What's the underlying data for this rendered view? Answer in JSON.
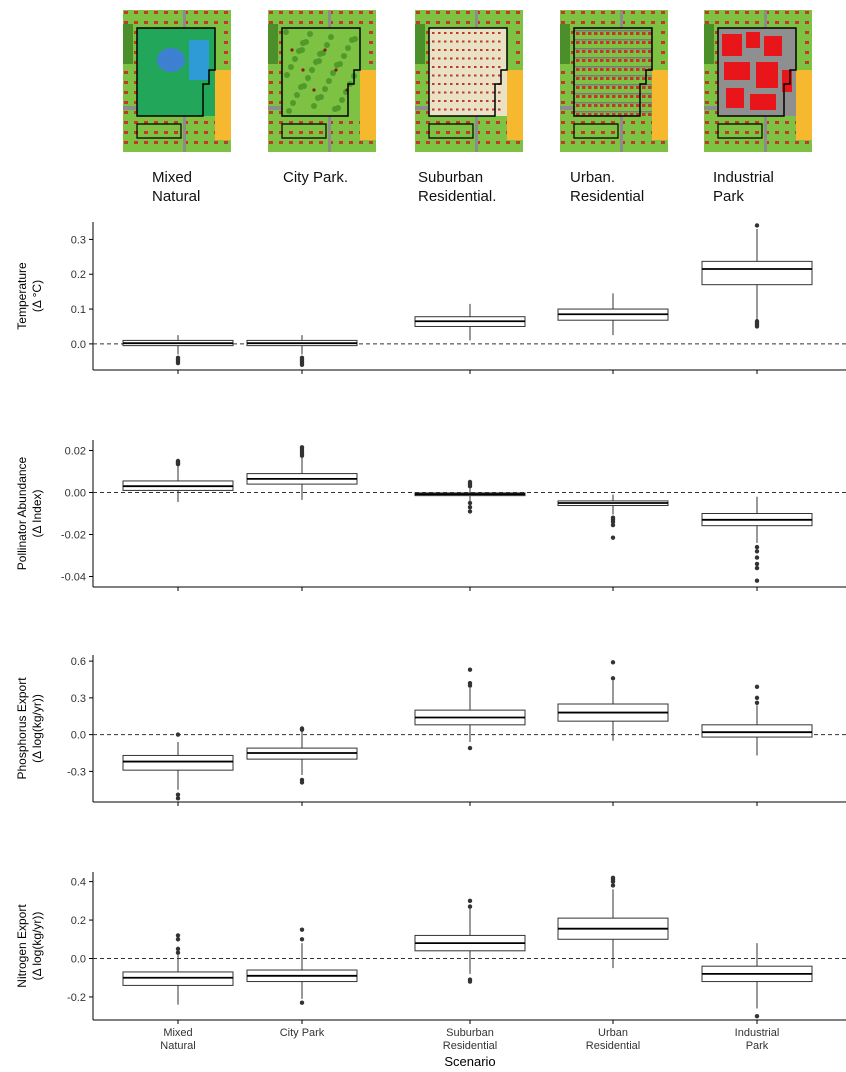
{
  "scenario_labels": [
    {
      "line1": "Mixed",
      "line2": "Natural"
    },
    {
      "line1": "City Park.",
      "line2": ""
    },
    {
      "line1": "Suburban",
      "line2": "Residential."
    },
    {
      "line1": "Urban.",
      "line2": "Residential"
    },
    {
      "line1": "Industrial",
      "line2": "Park"
    }
  ],
  "x_axis": {
    "title": "Scenario",
    "tick_labels": [
      {
        "line1": "Mixed",
        "line2": "Natural"
      },
      {
        "line1": "City Park",
        "line2": ""
      },
      {
        "line1": "Suburban",
        "line2": "Residential"
      },
      {
        "line1": "Urban",
        "line2": "Residential"
      },
      {
        "line1": "Industrial",
        "line2": "Park"
      }
    ]
  },
  "colors": {
    "box_fill": "#ffffff",
    "box_stroke": "#333333",
    "median": "#000000",
    "outlier": "#333333",
    "reference_line": "#333333"
  },
  "chart_data": [
    {
      "type": "boxplot",
      "ylabel_line1": "Temperature",
      "ylabel_line2": "(Δ °C)",
      "ylim": [
        -0.075,
        0.35
      ],
      "yticks": [
        0.0,
        0.1,
        0.2,
        0.3
      ],
      "ytick_labels": [
        "0.0",
        "0.1",
        "0.2",
        "0.3"
      ],
      "reference_line": 0,
      "categories": [
        "Mixed Natural",
        "City Park",
        "Suburban Residential",
        "Urban Residential",
        "Industrial Park"
      ],
      "boxes": [
        {
          "q1": -0.005,
          "median": 0.002,
          "q3": 0.01,
          "whisker_low": -0.03,
          "whisker_high": 0.025,
          "outliers": [
            -0.04,
            -0.045,
            -0.05,
            -0.055
          ]
        },
        {
          "q1": -0.005,
          "median": 0.002,
          "q3": 0.01,
          "whisker_low": -0.03,
          "whisker_high": 0.025,
          "outliers": [
            -0.04,
            -0.045,
            -0.05,
            -0.055,
            -0.06
          ]
        },
        {
          "q1": 0.05,
          "median": 0.065,
          "q3": 0.078,
          "whisker_low": 0.01,
          "whisker_high": 0.115,
          "outliers": []
        },
        {
          "q1": 0.068,
          "median": 0.085,
          "q3": 0.1,
          "whisker_low": 0.025,
          "whisker_high": 0.145,
          "outliers": []
        },
        {
          "q1": 0.17,
          "median": 0.215,
          "q3": 0.237,
          "whisker_low": 0.07,
          "whisker_high": 0.33,
          "outliers": [
            0.065,
            0.06,
            0.055,
            0.05,
            0.34
          ]
        }
      ]
    },
    {
      "type": "boxplot",
      "ylabel_line1": "Pollinator Abundance",
      "ylabel_line2": "(Δ Index)",
      "ylim": [
        -0.045,
        0.025
      ],
      "yticks": [
        0.02,
        0.0,
        -0.02,
        -0.04
      ],
      "ytick_labels": [
        "0.02",
        "0.00",
        "-0.02",
        "-0.04"
      ],
      "reference_line": 0,
      "categories": [
        "Mixed Natural",
        "City Park",
        "Suburban Residential",
        "Urban Residential",
        "Industrial Park"
      ],
      "boxes": [
        {
          "q1": 0.001,
          "median": 0.003,
          "q3": 0.0055,
          "whisker_low": -0.0045,
          "whisker_high": 0.0125,
          "outliers": [
            0.0135,
            0.014,
            0.0145,
            0.015
          ]
        },
        {
          "q1": 0.004,
          "median": 0.0065,
          "q3": 0.009,
          "whisker_low": -0.0035,
          "whisker_high": 0.0165,
          "outliers": [
            0.0175,
            0.0185,
            0.0195,
            0.0205,
            0.0215
          ]
        },
        {
          "q1": -0.0015,
          "median": -0.0008,
          "q3": -0.0002,
          "whisker_low": -0.004,
          "whisker_high": 0.002,
          "outliers": [
            0.003,
            0.004,
            0.005,
            -0.005,
            -0.007,
            -0.009
          ]
        },
        {
          "q1": -0.0062,
          "median": -0.005,
          "q3": -0.004,
          "whisker_low": -0.0105,
          "whisker_high": -0.001,
          "outliers": [
            -0.012,
            -0.013,
            -0.014,
            -0.0155,
            -0.0215
          ]
        },
        {
          "q1": -0.0158,
          "median": -0.013,
          "q3": -0.01,
          "whisker_low": -0.024,
          "whisker_high": -0.002,
          "outliers": [
            -0.026,
            -0.028,
            -0.031,
            -0.034,
            -0.036,
            -0.042
          ]
        }
      ]
    },
    {
      "type": "boxplot",
      "ylabel_line1": "Phosphorus Export",
      "ylabel_line2": "(Δ log(kg/yr))",
      "ylim": [
        -0.55,
        0.65
      ],
      "yticks": [
        0.6,
        0.3,
        0.0,
        -0.3
      ],
      "ytick_labels": [
        "0.6",
        "0.3",
        "0.0",
        "-0.3"
      ],
      "reference_line": 0,
      "categories": [
        "Mixed Natural",
        "City Park",
        "Suburban Residential",
        "Urban Residential",
        "Industrial Park"
      ],
      "boxes": [
        {
          "q1": -0.29,
          "median": -0.22,
          "q3": -0.17,
          "whisker_low": -0.45,
          "whisker_high": -0.06,
          "outliers": [
            -0.49,
            -0.52,
            0.0
          ]
        },
        {
          "q1": -0.2,
          "median": -0.15,
          "q3": -0.11,
          "whisker_low": -0.33,
          "whisker_high": 0.03,
          "outliers": [
            -0.37,
            -0.39,
            0.04,
            0.05
          ]
        },
        {
          "q1": 0.08,
          "median": 0.14,
          "q3": 0.2,
          "whisker_low": -0.06,
          "whisker_high": 0.38,
          "outliers": [
            0.4,
            0.42,
            0.53,
            -0.11
          ]
        },
        {
          "q1": 0.11,
          "median": 0.18,
          "q3": 0.25,
          "whisker_low": -0.05,
          "whisker_high": 0.44,
          "outliers": [
            0.46,
            0.59
          ]
        },
        {
          "q1": -0.02,
          "median": 0.02,
          "q3": 0.08,
          "whisker_low": -0.17,
          "whisker_high": 0.24,
          "outliers": [
            0.26,
            0.3,
            0.39
          ]
        }
      ]
    },
    {
      "type": "boxplot",
      "ylabel_line1": "Nitrogen Export",
      "ylabel_line2": "(Δ log(kg/yr))",
      "ylim": [
        -0.32,
        0.45
      ],
      "yticks": [
        0.4,
        0.2,
        0.0,
        -0.2
      ],
      "ytick_labels": [
        "0.4",
        "0.2",
        "0.0",
        "-0.2"
      ],
      "reference_line": 0,
      "categories": [
        "Mixed Natural",
        "City Park",
        "Suburban Residential",
        "Urban Residential",
        "Industrial Park"
      ],
      "boxes": [
        {
          "q1": -0.14,
          "median": -0.1,
          "q3": -0.07,
          "whisker_low": -0.24,
          "whisker_high": 0.02,
          "outliers": [
            0.03,
            0.05,
            0.1,
            0.12
          ]
        },
        {
          "q1": -0.12,
          "median": -0.09,
          "q3": -0.06,
          "whisker_low": -0.21,
          "whisker_high": 0.08,
          "outliers": [
            0.1,
            0.15,
            -0.23
          ]
        },
        {
          "q1": 0.04,
          "median": 0.08,
          "q3": 0.12,
          "whisker_low": -0.08,
          "whisker_high": 0.26,
          "outliers": [
            0.27,
            0.3,
            -0.11,
            -0.12
          ]
        },
        {
          "q1": 0.1,
          "median": 0.155,
          "q3": 0.21,
          "whisker_low": -0.05,
          "whisker_high": 0.36,
          "outliers": [
            0.38,
            0.4,
            0.41,
            0.42
          ]
        },
        {
          "q1": -0.12,
          "median": -0.08,
          "q3": -0.04,
          "whisker_low": -0.26,
          "whisker_high": 0.08,
          "outliers": [
            -0.3
          ]
        }
      ]
    }
  ]
}
